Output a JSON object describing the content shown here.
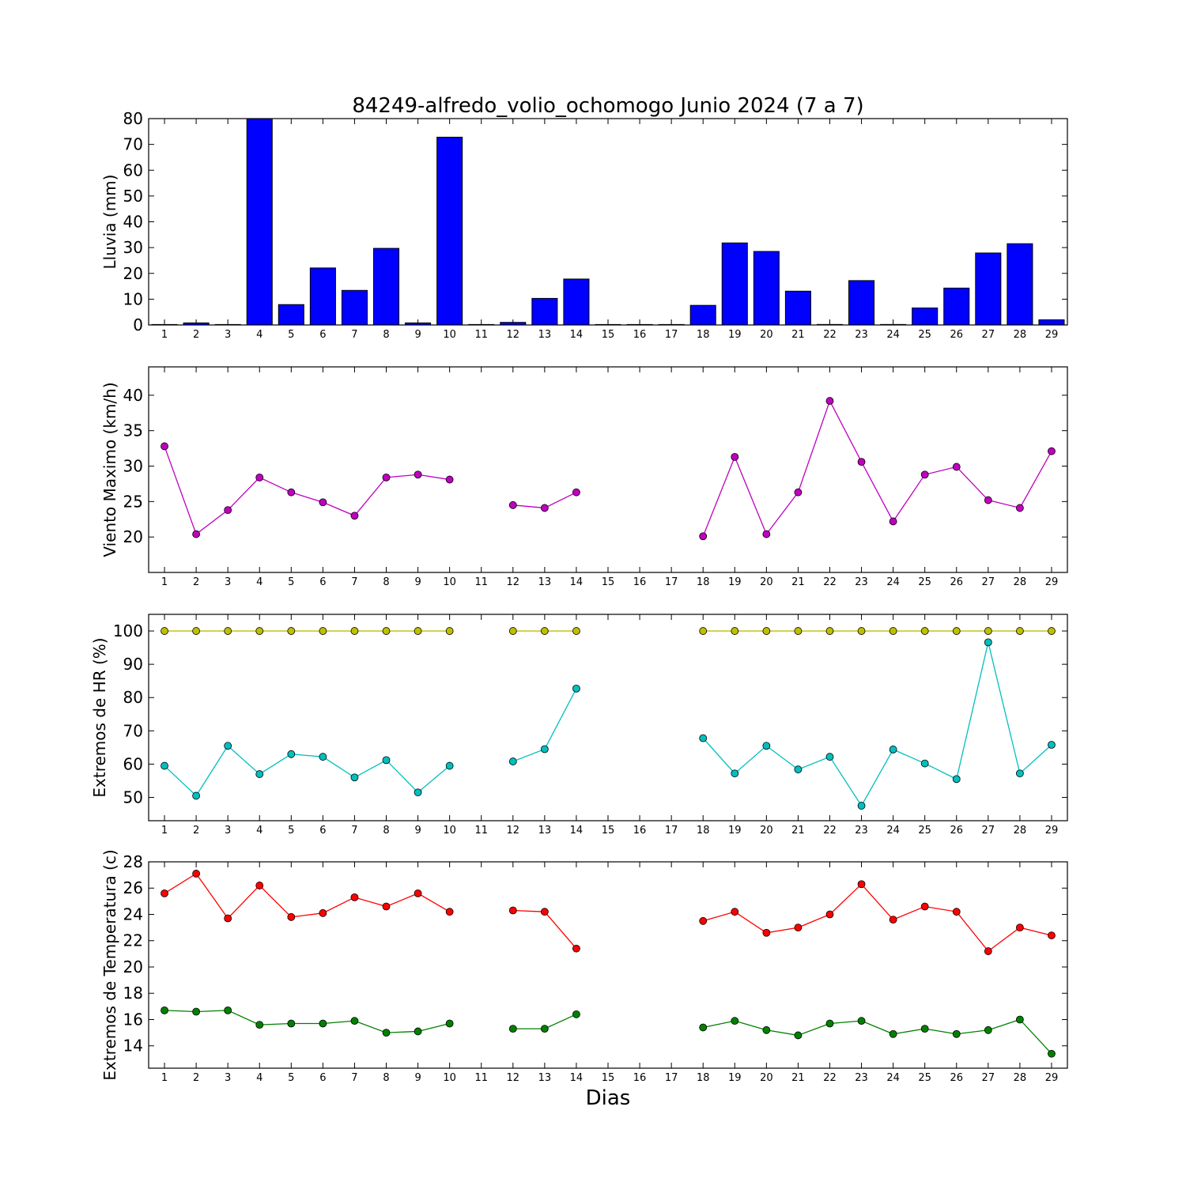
{
  "chart_data": {
    "title": "84249-alfredo_volio_ochomogo Junio 2024  (7 a 7)",
    "xlabel": "Dias",
    "days": [
      1,
      2,
      3,
      4,
      5,
      6,
      7,
      8,
      9,
      10,
      11,
      12,
      13,
      14,
      15,
      16,
      17,
      18,
      19,
      20,
      21,
      22,
      23,
      24,
      25,
      26,
      27,
      28,
      29
    ],
    "panels": [
      {
        "type": "bar",
        "ylabel": "Lluvia (mm)",
        "ylim": [
          0,
          80
        ],
        "yticks": [
          0,
          10,
          20,
          30,
          40,
          50,
          60,
          70,
          80
        ],
        "series": [
          {
            "color": "#0000ff",
            "values": [
              0,
              0.8,
              0,
              80,
              7.9,
              22.1,
              13.4,
              29.7,
              0.8,
              72.8,
              0,
              1.0,
              10.3,
              17.8,
              0,
              0,
              0,
              7.6,
              31.8,
              28.5,
              13.1,
              0.2,
              17.2,
              0.2,
              6.6,
              14.3,
              27.9,
              31.5,
              2.0
            ]
          }
        ]
      },
      {
        "type": "line",
        "ylabel": "Viento Maximo (km/h)",
        "ylim": [
          15,
          44
        ],
        "yticks": [
          20,
          25,
          30,
          35,
          40
        ],
        "series": [
          {
            "color": "#bf00bf",
            "values": [
              32.8,
              20.4,
              23.8,
              28.4,
              26.3,
              24.9,
              23.0,
              28.4,
              28.8,
              28.1,
              null,
              24.5,
              24.1,
              26.3,
              null,
              null,
              null,
              20.1,
              31.3,
              20.4,
              26.3,
              39.2,
              30.6,
              22.2,
              28.8,
              29.9,
              25.2,
              24.1,
              32.1
            ]
          }
        ]
      },
      {
        "type": "line",
        "ylabel": "Extremos de HR (%)",
        "ylim": [
          43,
          105
        ],
        "yticks": [
          50,
          60,
          70,
          80,
          90,
          100
        ],
        "series": [
          {
            "color": "#bfbf00",
            "values": [
              100,
              100,
              100,
              100,
              100,
              100,
              100,
              100,
              100,
              100,
              null,
              100,
              100,
              100,
              null,
              null,
              null,
              100,
              100,
              100,
              100,
              100,
              100,
              100,
              100,
              100,
              100,
              100,
              100
            ]
          },
          {
            "color": "#00bfbf",
            "values": [
              59.5,
              50.5,
              65.5,
              57.0,
              63.0,
              62.2,
              56.0,
              61.2,
              51.5,
              59.5,
              null,
              60.8,
              64.5,
              82.7,
              null,
              null,
              null,
              67.8,
              57.2,
              65.5,
              58.4,
              62.2,
              47.5,
              64.4,
              60.2,
              55.5,
              96.6,
              57.2,
              65.8
            ]
          }
        ]
      },
      {
        "type": "line",
        "ylabel": "Extremos de Temperatura (c)",
        "ylim": [
          12.3,
          28
        ],
        "yticks": [
          14,
          16,
          18,
          20,
          22,
          24,
          26,
          28
        ],
        "series": [
          {
            "color": "#ff0000",
            "values": [
              25.6,
              27.1,
              23.7,
              26.2,
              23.8,
              24.1,
              25.3,
              24.6,
              25.6,
              24.2,
              null,
              24.3,
              24.2,
              21.4,
              null,
              null,
              null,
              23.5,
              24.2,
              22.6,
              23.0,
              24.0,
              26.3,
              23.6,
              24.6,
              24.2,
              21.2,
              23.0,
              22.4
            ]
          },
          {
            "color": "#008000",
            "values": [
              16.7,
              16.6,
              16.7,
              15.6,
              15.7,
              15.7,
              15.9,
              15.0,
              15.1,
              15.7,
              null,
              15.3,
              15.3,
              16.4,
              null,
              null,
              null,
              15.4,
              15.9,
              15.2,
              14.8,
              15.7,
              15.9,
              14.9,
              15.3,
              14.9,
              15.2,
              16.0,
              13.4
            ]
          }
        ]
      }
    ]
  }
}
